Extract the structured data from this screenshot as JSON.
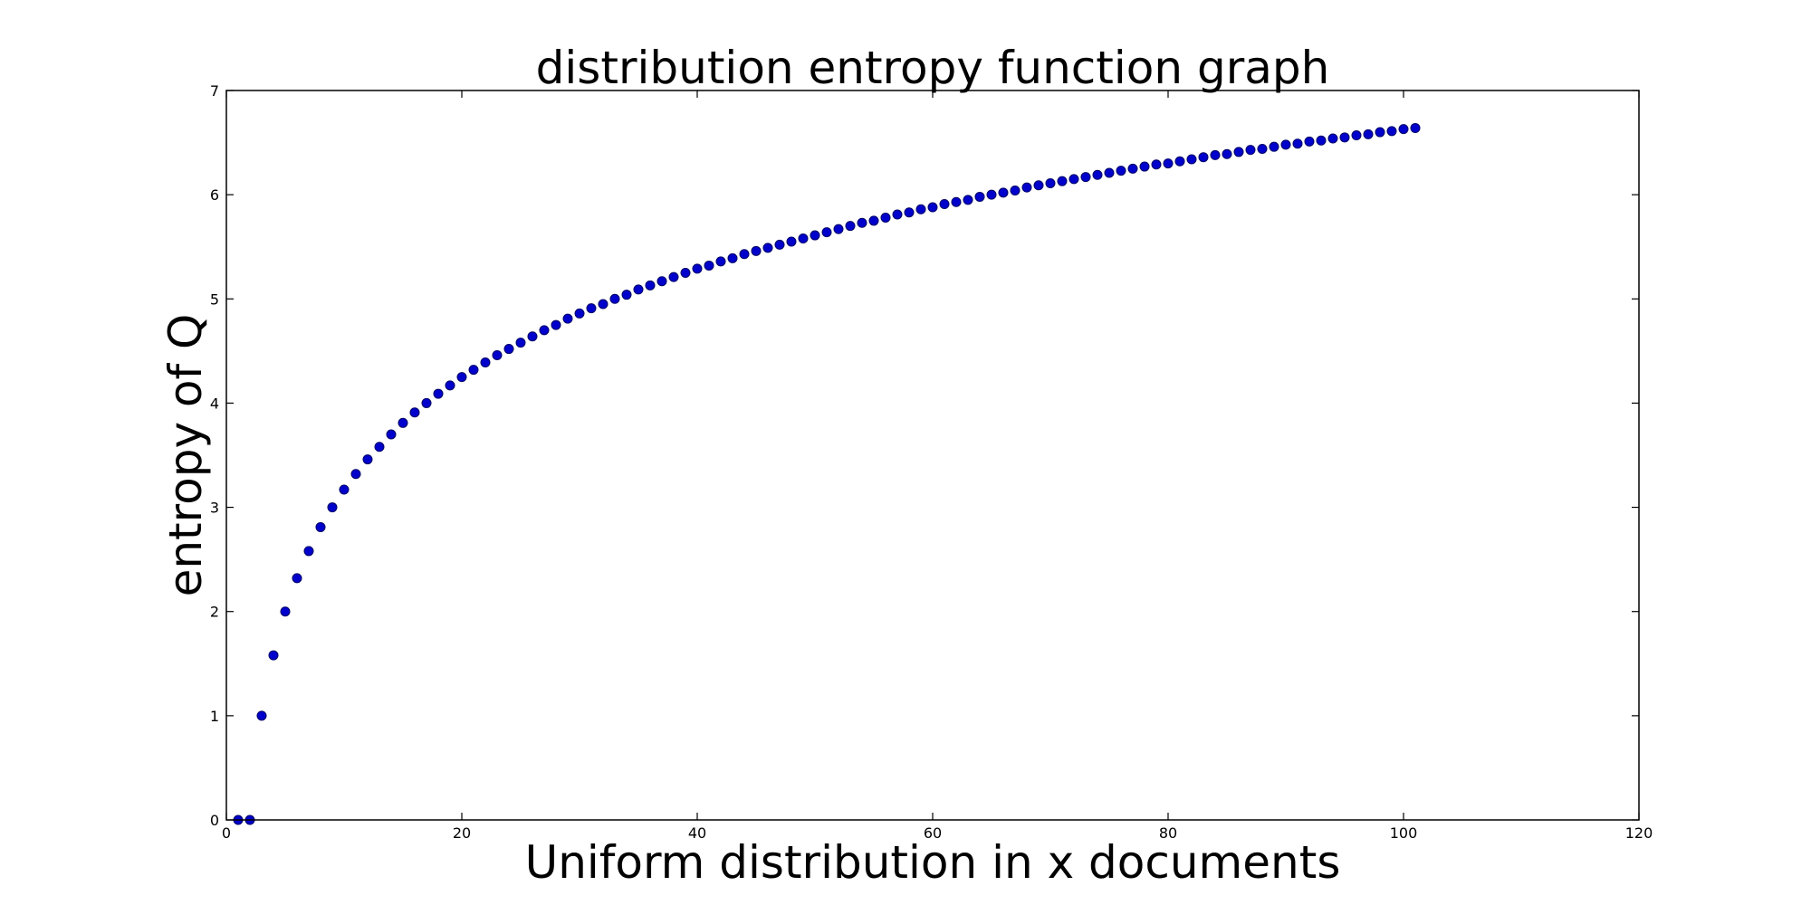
{
  "chart_data": {
    "type": "scatter",
    "title": "distribution entropy function graph",
    "xlabel": "Uniform distribution in x documents",
    "ylabel": "entropy of Q",
    "xlim": [
      0,
      120
    ],
    "ylim": [
      0,
      7
    ],
    "xticks": [
      0,
      20,
      40,
      60,
      80,
      100,
      120
    ],
    "yticks": [
      0,
      1,
      2,
      3,
      4,
      5,
      6,
      7
    ],
    "grid": false,
    "legend": "none",
    "marker_color": "#0000cc",
    "marker_edge_color": "#000066",
    "series": [
      {
        "x": [
          1,
          2,
          3,
          4,
          5,
          6,
          7,
          8,
          9,
          10,
          11,
          12,
          13,
          14,
          15,
          16,
          17,
          18,
          19,
          20,
          21,
          22,
          23,
          24,
          25,
          26,
          27,
          28,
          29,
          30,
          31,
          32,
          33,
          34,
          35,
          36,
          37,
          38,
          39,
          40,
          41,
          42,
          43,
          44,
          45,
          46,
          47,
          48,
          49,
          50,
          51,
          52,
          53,
          54,
          55,
          56,
          57,
          58,
          59,
          60,
          61,
          62,
          63,
          64,
          65,
          66,
          67,
          68,
          69,
          70,
          71,
          72,
          73,
          74,
          75,
          76,
          77,
          78,
          79,
          80,
          81,
          82,
          83,
          84,
          85,
          86,
          87,
          88,
          89,
          90,
          91,
          92,
          93,
          94,
          95,
          96,
          97,
          98,
          99,
          100,
          101
        ],
        "y": [
          0,
          0,
          1,
          1.58,
          2,
          2.32,
          2.58,
          2.81,
          3,
          3.17,
          3.32,
          3.46,
          3.58,
          3.7,
          3.81,
          3.91,
          4,
          4.09,
          4.17,
          4.25,
          4.32,
          4.39,
          4.46,
          4.52,
          4.58,
          4.64,
          4.7,
          4.75,
          4.81,
          4.86,
          4.91,
          4.95,
          5,
          5.04,
          5.09,
          5.13,
          5.17,
          5.21,
          5.25,
          5.29,
          5.32,
          5.36,
          5.39,
          5.43,
          5.46,
          5.49,
          5.52,
          5.55,
          5.58,
          5.61,
          5.64,
          5.67,
          5.7,
          5.73,
          5.75,
          5.78,
          5.81,
          5.83,
          5.86,
          5.88,
          5.91,
          5.93,
          5.95,
          5.98,
          6,
          6.02,
          6.04,
          6.07,
          6.09,
          6.11,
          6.13,
          6.15,
          6.17,
          6.19,
          6.21,
          6.23,
          6.25,
          6.27,
          6.29,
          6.3,
          6.32,
          6.34,
          6.36,
          6.38,
          6.39,
          6.41,
          6.43,
          6.44,
          6.46,
          6.48,
          6.49,
          6.51,
          6.52,
          6.54,
          6.55,
          6.57,
          6.58,
          6.6,
          6.61,
          6.63,
          6.64
        ]
      }
    ]
  }
}
